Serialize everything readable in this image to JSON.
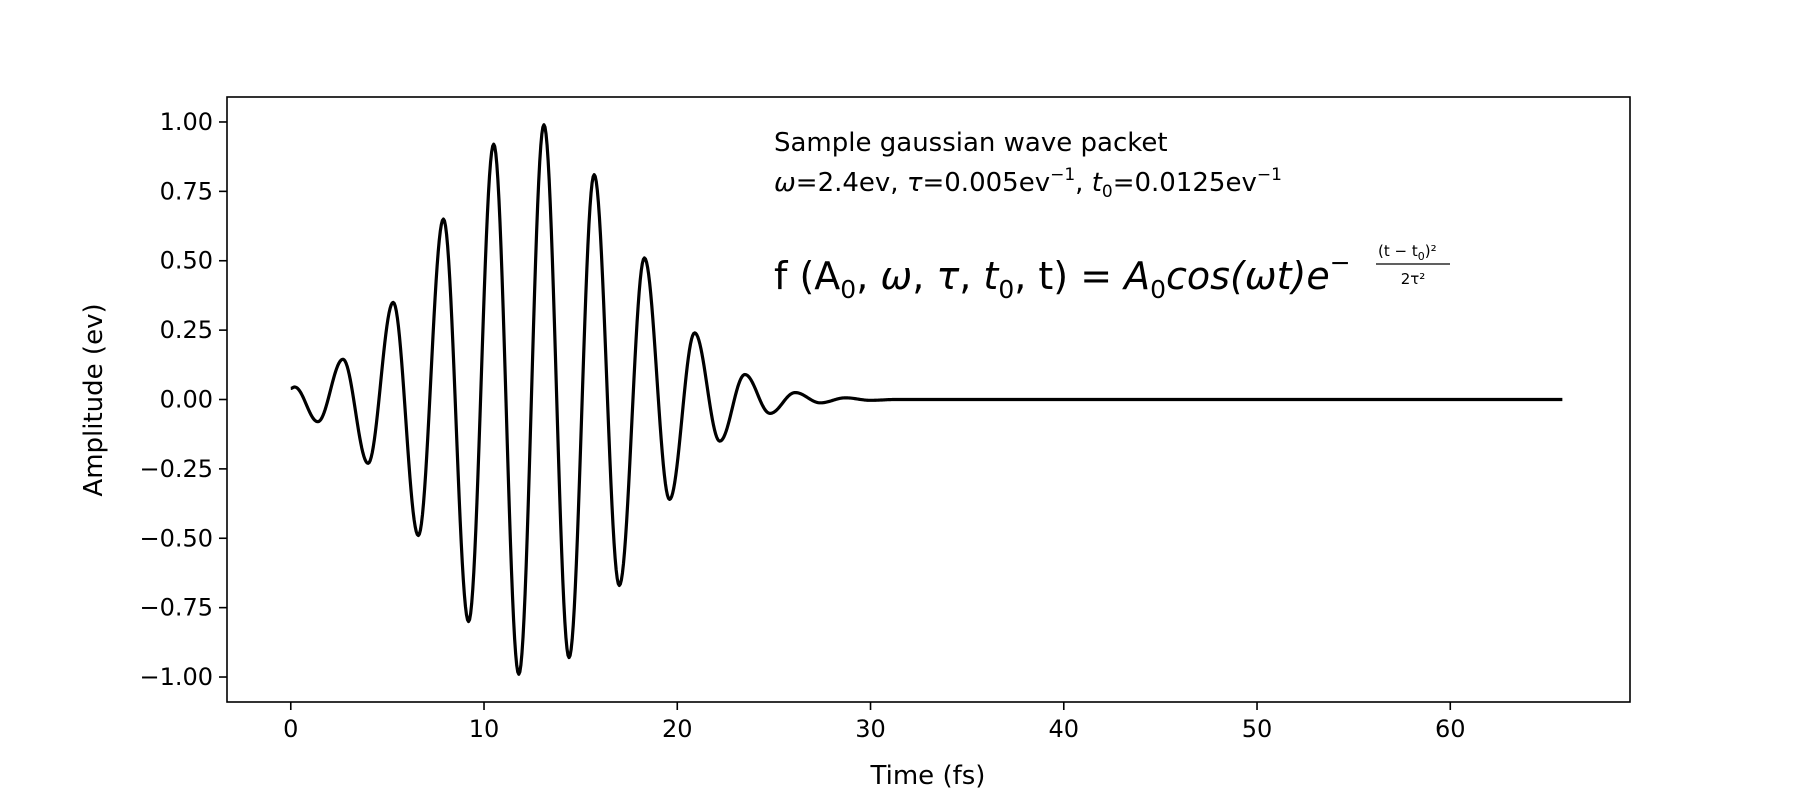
{
  "chart_data": {
    "type": "line",
    "title": "",
    "xlabel": "Time (fs)",
    "ylabel": "Amplitude (ev)",
    "xlim": [
      -3.3,
      69.3
    ],
    "ylim": [
      -1.09,
      1.09
    ],
    "xticks": [
      0,
      10,
      20,
      30,
      40,
      50,
      60
    ],
    "xtick_labels": [
      "0",
      "10",
      "20",
      "30",
      "40",
      "50",
      "60"
    ],
    "yticks": [
      1.0,
      0.75,
      0.5,
      0.25,
      0.0,
      -0.25,
      -0.5,
      -0.75,
      -1.0
    ],
    "ytick_labels": [
      "1.00",
      "0.75",
      "0.50",
      "0.25",
      "0.00",
      "−0.25",
      "−0.50",
      "−0.75",
      "−1.00"
    ],
    "grid": false,
    "legend": "none",
    "line_color": "#000000",
    "series": [
      {
        "function": "A0*cos(omega*t)*exp(-(t-t0)^2/(2*tau^2))",
        "A0": 1.0,
        "omega": 2.4,
        "tau": 0.005,
        "t0": 0.0125,
        "x_start": 0,
        "x_end": 65.8,
        "peaks": [
          {
            "x": 0.2,
            "y": 0.045
          },
          {
            "x": 1.4,
            "y": -0.08
          },
          {
            "x": 2.7,
            "y": 0.145
          },
          {
            "x": 4.0,
            "y": -0.23
          },
          {
            "x": 5.3,
            "y": 0.35
          },
          {
            "x": 6.6,
            "y": -0.49
          },
          {
            "x": 7.9,
            "y": 0.65
          },
          {
            "x": 9.2,
            "y": -0.8
          },
          {
            "x": 10.5,
            "y": 0.92
          },
          {
            "x": 11.8,
            "y": -0.99
          },
          {
            "x": 13.1,
            "y": 0.99
          },
          {
            "x": 14.4,
            "y": -0.93
          },
          {
            "x": 15.7,
            "y": 0.81
          },
          {
            "x": 17.0,
            "y": -0.67
          },
          {
            "x": 18.3,
            "y": 0.51
          },
          {
            "x": 19.6,
            "y": -0.36
          },
          {
            "x": 20.9,
            "y": 0.24
          },
          {
            "x": 22.2,
            "y": -0.15
          },
          {
            "x": 23.5,
            "y": 0.09
          },
          {
            "x": 24.8,
            "y": -0.05
          },
          {
            "x": 26.1,
            "y": 0.025
          },
          {
            "x": 27.4,
            "y": -0.012
          },
          {
            "x": 28.7,
            "y": 0.006
          },
          {
            "x": 30.0,
            "y": -0.003
          }
        ]
      }
    ]
  },
  "annotations": {
    "line1": "Sample gaussian wave packet",
    "omega_sym": "ω",
    "omega_val": "=2.4ev, ",
    "tau_sym": "τ",
    "tau_val": "=0.005ev",
    "tau_exp": "−1",
    "t0_sep": ", ",
    "t0_sym": "t",
    "t0_sub": "0",
    "t0_val": "=0.0125ev",
    "t0_exp": "−1",
    "formula_lhs_f": "f (A",
    "formula_lhs_sub": "0",
    "formula_lhs_mid1": ", ",
    "formula_lhs_omega": "ω",
    "formula_lhs_mid2": ", ",
    "formula_lhs_tau": "τ",
    "formula_lhs_mid3": ", ",
    "formula_lhs_t0": "t",
    "formula_lhs_t0_sub": "0",
    "formula_lhs_end": ", t) = ",
    "formula_rhs_A": "A",
    "formula_rhs_A_sub": "0",
    "formula_rhs_cos": "cos(ωt)e",
    "formula_exp_minus": "−",
    "formula_exp_num": "(t − t",
    "formula_exp_num_sub": "0",
    "formula_exp_num_end": ")²",
    "formula_exp_den": "2τ²"
  }
}
